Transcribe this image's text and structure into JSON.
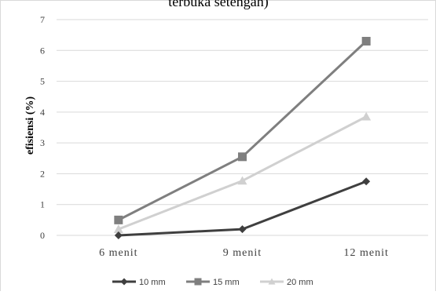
{
  "chart_data": {
    "type": "line",
    "title": "terbuka setengah)",
    "xlabel": "",
    "ylabel": "efisiensi (%)",
    "categories": [
      "6 menit",
      "9 menit",
      "12 menit"
    ],
    "ylim": [
      0,
      7
    ],
    "yticks": [
      "0",
      "1",
      "2",
      "3",
      "4",
      "5",
      "6",
      "7"
    ],
    "grid": "horizontal",
    "legend_position": "bottom",
    "series": [
      {
        "name": "10 mm",
        "values": [
          0.0,
          0.2,
          1.75
        ],
        "color": "#3f3f3f",
        "marker": "diamond"
      },
      {
        "name": "15 mm",
        "values": [
          0.5,
          2.55,
          6.3
        ],
        "color": "#7f7f7f",
        "marker": "square"
      },
      {
        "name": "20 mm",
        "values": [
          0.2,
          1.77,
          3.85
        ],
        "color": "#d0d0d0",
        "marker": "triangle"
      }
    ]
  }
}
